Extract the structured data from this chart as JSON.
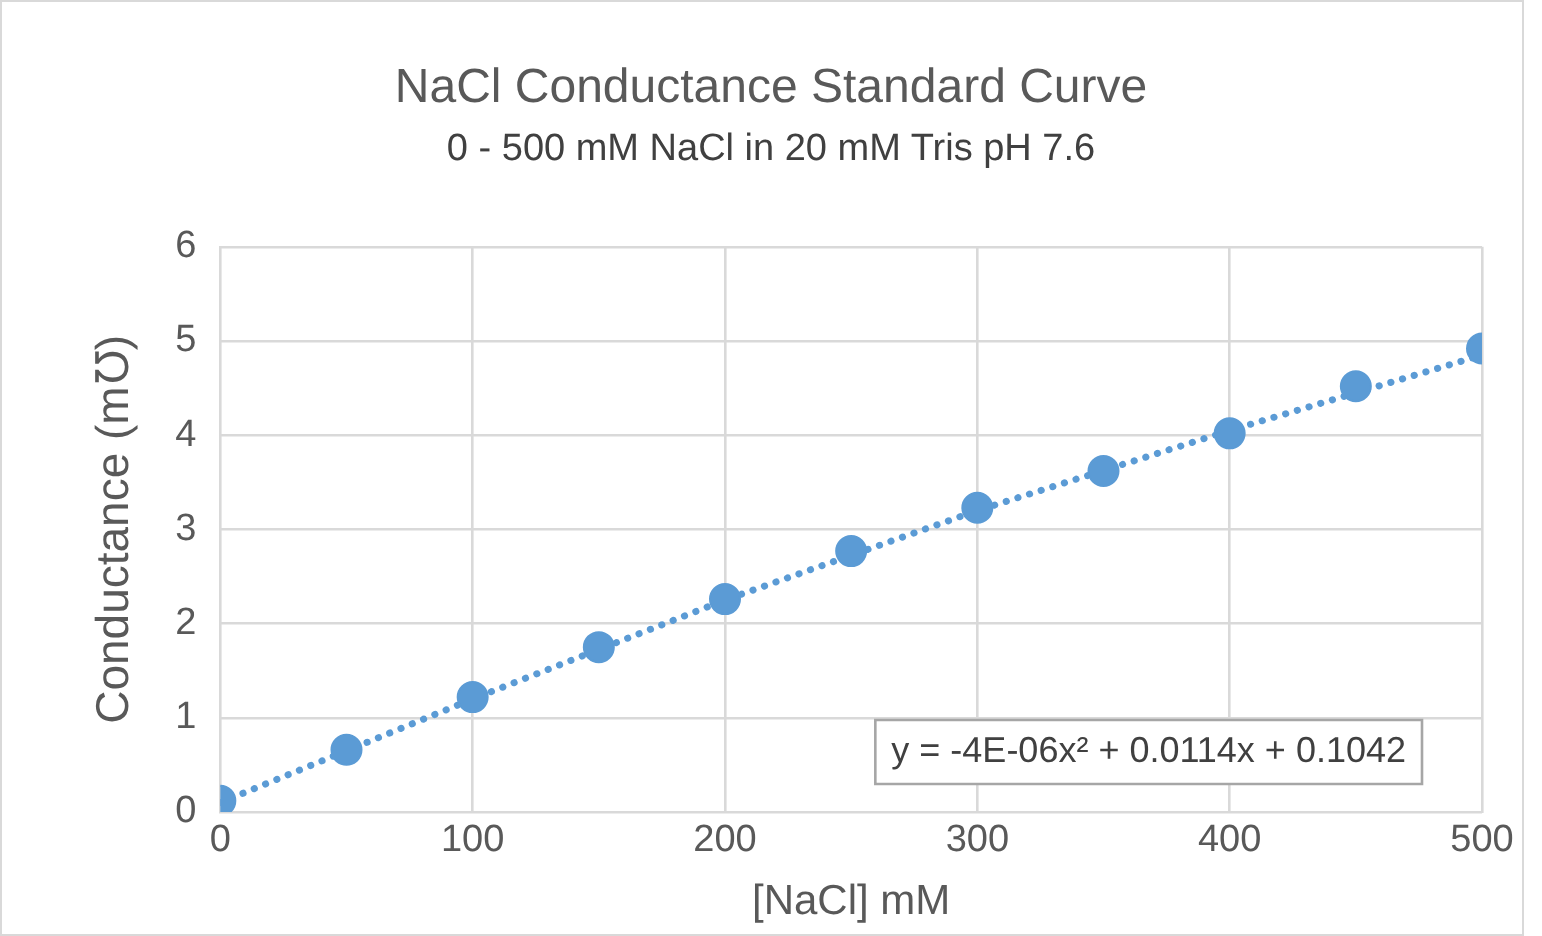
{
  "chart_data": {
    "type": "scatter",
    "title": "NaCl Conductance Standard Curve",
    "subtitle": "0 - 500 mM NaCl in 20 mM Tris pH 7.6",
    "xlabel": "[NaCl] mM",
    "ylabel": "Conductance (m℧)",
    "x": [
      0,
      50,
      100,
      150,
      200,
      250,
      300,
      350,
      400,
      450,
      500
    ],
    "series": [
      {
        "type": "scatter",
        "color": "#5b9bd5",
        "marker": "circle",
        "values": [
          0.12,
          0.66,
          1.22,
          1.75,
          2.26,
          2.77,
          3.23,
          3.62,
          4.02,
          4.52,
          4.92
        ]
      },
      {
        "type": "line",
        "color": "#5b9bd5",
        "marker": "none",
        "line_style": "dotted",
        "x": [
          0,
          100,
          200,
          300,
          400,
          500
        ],
        "values": [
          0.1,
          1.2,
          2.25,
          3.2,
          4.05,
          4.85
        ]
      }
    ],
    "xlim": [
      0,
      500
    ],
    "xticks": [
      0,
      100,
      200,
      300,
      400,
      500
    ],
    "ylim": [
      0,
      6
    ],
    "yticks": [
      0,
      1,
      2,
      3,
      4,
      5,
      6
    ],
    "grid": true,
    "legend": false,
    "annotations": [
      "y = -4E-06x² + 0.0114x + 0.1042"
    ]
  }
}
